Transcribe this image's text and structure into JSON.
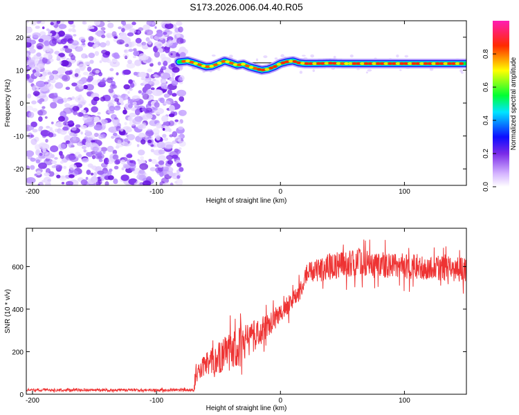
{
  "title": "S173.2026.006.04.40.R05",
  "chart_data": [
    {
      "type": "heatmap",
      "xlabel": "Height of straight line (km)",
      "ylabel": "Frequency (Hz)",
      "xlim": [
        -205,
        150
      ],
      "ylim": [
        -25,
        25
      ],
      "x_ticks": [
        -200,
        -100,
        0,
        100
      ],
      "y_ticks": [
        -20,
        -10,
        0,
        10,
        20
      ],
      "noise_region_x": [
        -205,
        -78
      ],
      "reference_line_hz": 12.2,
      "ridge": {
        "x": [
          -82,
          -75,
          -68,
          -60,
          -55,
          -50,
          -45,
          -40,
          -35,
          -30,
          -25,
          -20,
          -15,
          -10,
          -5,
          0,
          5,
          10,
          15,
          20,
          30,
          40,
          50,
          60,
          80,
          100,
          120,
          150
        ],
        "y": [
          12.5,
          12.8,
          12.0,
          11.0,
          11.2,
          12.0,
          12.8,
          12.2,
          11.5,
          11.8,
          11.0,
          10.5,
          10.0,
          10.3,
          11.0,
          12.0,
          12.5,
          12.8,
          12.2,
          12.0,
          12.0,
          12.1,
          12.0,
          12.0,
          12.0,
          12.0,
          12.0,
          12.0
        ]
      },
      "colorbar": {
        "label": "Normalized spectral amplitude",
        "range": [
          0.0,
          1.0
        ],
        "ticks": [
          0.0,
          0.2,
          0.4,
          0.6,
          0.8
        ],
        "tick_labels": [
          "0.0",
          "0.2",
          "0.4",
          "0.6",
          "0.8"
        ]
      }
    },
    {
      "type": "line",
      "xlabel": "Height of straight line (km)",
      "ylabel": "SNR (10 * v/v)",
      "xlim": [
        -205,
        150
      ],
      "ylim": [
        0,
        780
      ],
      "x_ticks": [
        -200,
        -100,
        0,
        100
      ],
      "y_ticks": [
        0,
        200,
        400,
        600
      ],
      "color": "#ee3333",
      "envelope": {
        "x": [
          -205,
          -70,
          -69,
          -65,
          -60,
          -50,
          -40,
          -30,
          -20,
          -10,
          0,
          10,
          17,
          20,
          30,
          40,
          50,
          60,
          70,
          80,
          90,
          100,
          110,
          120,
          130,
          140,
          150
        ],
        "mean": [
          20,
          20,
          70,
          100,
          140,
          170,
          200,
          240,
          280,
          320,
          380,
          440,
          500,
          560,
          580,
          600,
          610,
          620,
          615,
          610,
          605,
          600,
          600,
          595,
          590,
          590,
          585
        ],
        "noise": [
          8,
          8,
          60,
          60,
          70,
          90,
          110,
          110,
          90,
          70,
          60,
          55,
          55,
          60,
          70,
          80,
          80,
          80,
          75,
          75,
          75,
          75,
          75,
          75,
          75,
          75,
          75
        ]
      }
    }
  ]
}
